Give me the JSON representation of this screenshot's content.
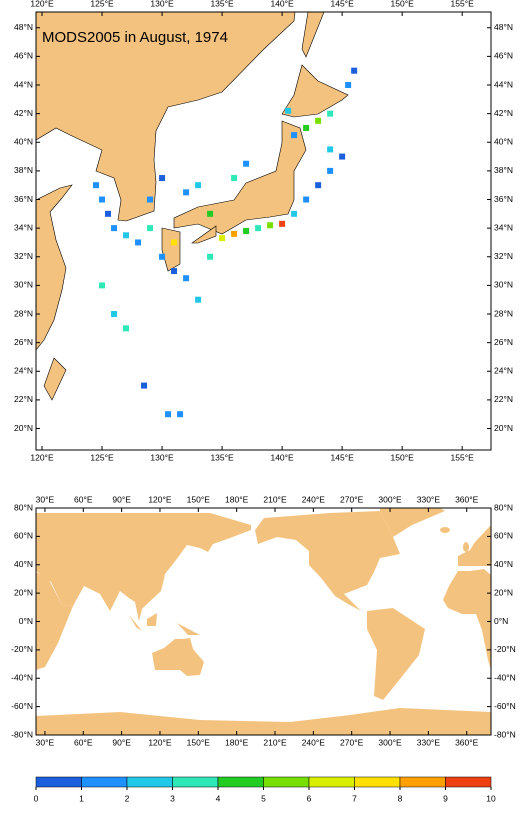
{
  "title": "MODS2005 in August, 1974",
  "regional_map": {
    "xlim": [
      119.5,
      157.4
    ],
    "ylim": [
      18.5,
      49.1
    ],
    "xticks": [
      {
        "value": 120,
        "label": "120°E"
      },
      {
        "value": 125,
        "label": "125°E"
      },
      {
        "value": 130,
        "label": "130°E"
      },
      {
        "value": 135,
        "label": "135°E"
      },
      {
        "value": 140,
        "label": "140°E"
      },
      {
        "value": 145,
        "label": "145°E"
      },
      {
        "value": 150,
        "label": "150°E"
      },
      {
        "value": 155,
        "label": "155°E"
      }
    ],
    "yticks": [
      {
        "value": 20,
        "label": "20°N"
      },
      {
        "value": 22,
        "label": "22°N"
      },
      {
        "value": 24,
        "label": "24°N"
      },
      {
        "value": 26,
        "label": "26°N"
      },
      {
        "value": 28,
        "label": "28°N"
      },
      {
        "value": 30,
        "label": "30°N"
      },
      {
        "value": 32,
        "label": "32°N"
      },
      {
        "value": 34,
        "label": "34°N"
      },
      {
        "value": 36,
        "label": "36°N"
      },
      {
        "value": 38,
        "label": "38°N"
      },
      {
        "value": 40,
        "label": "40°N"
      },
      {
        "value": 42,
        "label": "42°N"
      },
      {
        "value": 44,
        "label": "44°N"
      },
      {
        "value": 46,
        "label": "46°N"
      },
      {
        "value": 48,
        "label": "48°N"
      }
    ],
    "observations": {
      "x": [
        124.5,
        125,
        125.5,
        126,
        127,
        128,
        129,
        130,
        131,
        132,
        133,
        134,
        135,
        136,
        137,
        138,
        139,
        140,
        141,
        142,
        143,
        144,
        145,
        142,
        143,
        144,
        140.5,
        141,
        136,
        137,
        132,
        133,
        134,
        131,
        129,
        130,
        125,
        126,
        127,
        130.5,
        131.5,
        128.5,
        145.5,
        146,
        144
      ],
      "y": [
        37,
        36,
        35,
        34,
        33.5,
        33,
        34,
        32,
        31,
        30.5,
        29,
        32,
        33.3,
        33.6,
        33.8,
        34,
        34.2,
        34.3,
        35,
        36,
        37,
        38,
        39,
        41,
        41.5,
        42,
        42.2,
        40.5,
        37.5,
        38.5,
        36.5,
        37,
        35,
        33,
        36,
        37.5,
        30,
        28,
        27,
        21,
        21,
        23,
        44,
        45,
        39.5
      ],
      "values": [
        1,
        1,
        0,
        1,
        2,
        1,
        3,
        1,
        0,
        1,
        2,
        3,
        6,
        8,
        4,
        3,
        5,
        9,
        2,
        1,
        0,
        1,
        0,
        4,
        5,
        3,
        2,
        1,
        3,
        1,
        1,
        2,
        4,
        7,
        1,
        0,
        3,
        2,
        3,
        1,
        1,
        0,
        1,
        0,
        2
      ]
    }
  },
  "global_map": {
    "xlim": [
      23,
      379
    ],
    "ylim": [
      -80,
      80
    ],
    "xticks": [
      {
        "value": 30,
        "label": "30°E"
      },
      {
        "value": 60,
        "label": "60°E"
      },
      {
        "value": 90,
        "label": "90°E"
      },
      {
        "value": 120,
        "label": "120°E"
      },
      {
        "value": 150,
        "label": "150°E"
      },
      {
        "value": 180,
        "label": "180°E"
      },
      {
        "value": 210,
        "label": "210°E"
      },
      {
        "value": 240,
        "label": "240°E"
      },
      {
        "value": 270,
        "label": "270°E"
      },
      {
        "value": 300,
        "label": "300°E"
      },
      {
        "value": 330,
        "label": "330°E"
      },
      {
        "value": 360,
        "label": "360°E"
      }
    ],
    "yticks": [
      {
        "value": 80,
        "label": "80°N"
      },
      {
        "value": 60,
        "label": "60°N"
      },
      {
        "value": 40,
        "label": "40°N"
      },
      {
        "value": 20,
        "label": "20°N"
      },
      {
        "value": 0,
        "label": "0°N"
      },
      {
        "value": -20,
        "label": "-20°N"
      },
      {
        "value": -40,
        "label": "-40°N"
      },
      {
        "value": -60,
        "label": "-60°N"
      },
      {
        "value": -80,
        "label": "-80°N"
      }
    ]
  },
  "colorbar": {
    "ticks": [
      0,
      1,
      2,
      3,
      4,
      5,
      6,
      7,
      8,
      9,
      10
    ],
    "colors": [
      "#1c5fdd",
      "#1e90ff",
      "#22c8e8",
      "#2ee8b8",
      "#22cc22",
      "#77e000",
      "#d8f000",
      "#ffe000",
      "#ffa000",
      "#ee4010"
    ]
  }
}
